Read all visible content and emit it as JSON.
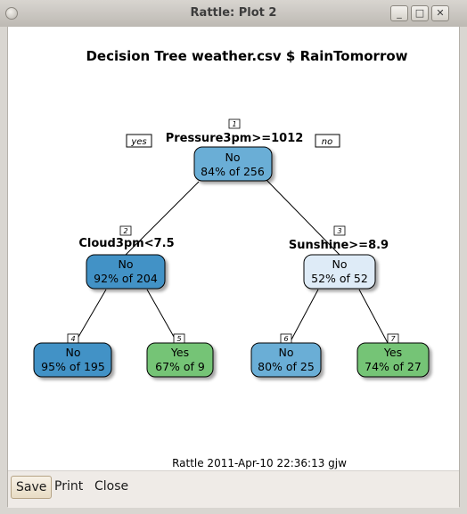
{
  "window": {
    "title": "Rattle: Plot 2",
    "minimize": "_",
    "maximize": "□",
    "close": "✕"
  },
  "plot": {
    "title": "Decision Tree weather.csv $ RainTomorrow",
    "footer": "Rattle 2011-Apr-10 22:36:13 gjw",
    "yes_label": "yes",
    "no_label": "no",
    "nodes": [
      {
        "num": "1",
        "split": "Pressure3pm>=1012",
        "class": "No",
        "stat": "84% of 256"
      },
      {
        "num": "2",
        "split": "Cloud3pm<7.5",
        "class": "No",
        "stat": "92% of 204"
      },
      {
        "num": "3",
        "split": "Sunshine>=8.9",
        "class": "No",
        "stat": "52% of 52"
      },
      {
        "num": "4",
        "class": "No",
        "stat": "95% of 195"
      },
      {
        "num": "5",
        "class": "Yes",
        "stat": "67% of 9"
      },
      {
        "num": "6",
        "class": "No",
        "stat": "80% of 25"
      },
      {
        "num": "7",
        "class": "Yes",
        "stat": "74% of 27"
      }
    ],
    "colors": {
      "node1": "#6baed6",
      "node2": "#4292c6",
      "node3": "#deebf7",
      "node4": "#4292c6",
      "node5": "#74c476",
      "node6": "#6baed6",
      "node7": "#74c476"
    }
  },
  "buttons": {
    "save": "Save",
    "print": "Print",
    "close": "Close"
  }
}
